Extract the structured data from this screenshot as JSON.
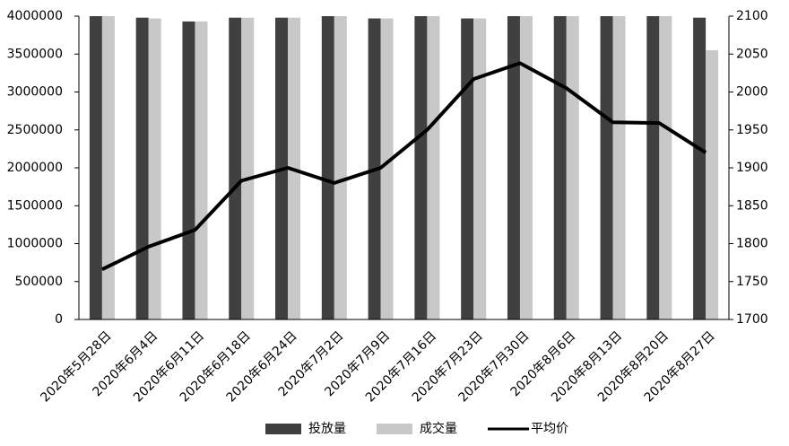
{
  "chart_data": {
    "type": "bar",
    "categories": [
      "2020年5月28日",
      "2020年6月4日",
      "2020年6月11日",
      "2020年6月18日",
      "2020年6月24日",
      "2020年7月2日",
      "2020年7月9日",
      "2020年7月16日",
      "2020年7月23日",
      "2020年7月30日",
      "2020年8月6日",
      "2020年8月13日",
      "2020年8月20日",
      "2020年8月27日"
    ],
    "series": [
      {
        "name": "投放量",
        "color": "#404040",
        "values": [
          4000000,
          3980000,
          3930000,
          3980000,
          3980000,
          4000000,
          3970000,
          4000000,
          3970000,
          4000000,
          4000000,
          4000000,
          4000000,
          3980000
        ]
      },
      {
        "name": "成交量",
        "color": "#c8c8c8",
        "values": [
          4000000,
          3970000,
          3930000,
          3980000,
          3980000,
          4000000,
          3970000,
          4000000,
          3970000,
          4000000,
          4000000,
          4000000,
          4000000,
          3550000
        ]
      },
      {
        "name": "平均价",
        "color": "#000000",
        "type": "line",
        "axis": "y2",
        "values": [
          1766,
          1796,
          1818,
          1883,
          1900,
          1880,
          1900,
          1950,
          2017,
          2038,
          2005,
          1960,
          1959,
          1920
        ]
      }
    ],
    "ylim": [
      0,
      4000000
    ],
    "yticks": [
      0,
      500000,
      1000000,
      1500000,
      2000000,
      2500000,
      3000000,
      3500000,
      4000000
    ],
    "y2lim": [
      1700,
      2100
    ],
    "y2ticks": [
      1700,
      1750,
      1800,
      1850,
      1900,
      1950,
      2000,
      2050,
      2100
    ],
    "grid": false,
    "legend": "bottom"
  }
}
